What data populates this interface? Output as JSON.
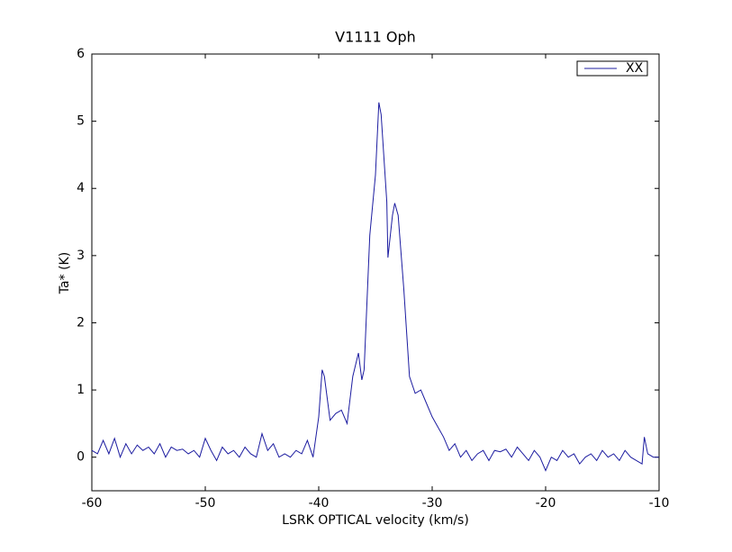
{
  "chart_data": {
    "type": "line",
    "title": "V1111 Oph",
    "xlabel": "LSRK OPTICAL velocity (km/s)",
    "ylabel": "Ta* (K)",
    "x": [
      -60,
      -59.5,
      -59,
      -58.5,
      -58,
      -57.5,
      -57,
      -56.5,
      -56,
      -55.5,
      -55,
      -54.5,
      -54,
      -53.5,
      -53,
      -52.5,
      -52,
      -51.5,
      -51,
      -50.5,
      -50,
      -49.5,
      -49,
      -48.5,
      -48,
      -47.5,
      -47,
      -46.5,
      -46,
      -45.5,
      -45,
      -44.5,
      -44,
      -43.5,
      -43,
      -42.5,
      -42,
      -41.5,
      -41,
      -40.5,
      -40,
      -39.7,
      -39.5,
      -39,
      -38.5,
      -38,
      -37.5,
      -37,
      -36.5,
      -36.2,
      -36,
      -35.5,
      -35,
      -34.7,
      -34.5,
      -34,
      -33.9,
      -33.5,
      -33.3,
      -33,
      -32.5,
      -32,
      -31.5,
      -31,
      -30.5,
      -30,
      -29.5,
      -29,
      -28.5,
      -28,
      -27.5,
      -27,
      -26.5,
      -26,
      -25.5,
      -25,
      -24.5,
      -24,
      -23.5,
      -23,
      -22.5,
      -22,
      -21.5,
      -21,
      -20.5,
      -20,
      -19.5,
      -19,
      -18.5,
      -18,
      -17.5,
      -17,
      -16.5,
      -16,
      -15.5,
      -15,
      -14.5,
      -14,
      -13.5,
      -13,
      -12.5,
      -12,
      -11.5,
      -11.3,
      -11,
      -10.5,
      -10
    ],
    "series": [
      {
        "name": "XX",
        "color": "#1c1ca0",
        "values": [
          0.1,
          0.05,
          0.25,
          0.05,
          0.28,
          0.0,
          0.2,
          0.05,
          0.18,
          0.1,
          0.15,
          0.05,
          0.2,
          0.0,
          0.15,
          0.1,
          0.12,
          0.05,
          0.1,
          0.0,
          0.28,
          0.1,
          -0.05,
          0.15,
          0.05,
          0.1,
          0.0,
          0.15,
          0.05,
          0.0,
          0.35,
          0.1,
          0.2,
          0.0,
          0.05,
          0.0,
          0.1,
          0.05,
          0.25,
          0.0,
          0.6,
          1.3,
          1.2,
          0.55,
          0.65,
          0.7,
          0.5,
          1.2,
          1.55,
          1.15,
          1.3,
          3.3,
          4.2,
          5.28,
          5.1,
          3.8,
          2.97,
          3.6,
          3.78,
          3.6,
          2.5,
          1.2,
          0.95,
          1.0,
          0.8,
          0.6,
          0.45,
          0.3,
          0.1,
          0.2,
          0.0,
          0.1,
          -0.05,
          0.05,
          0.1,
          -0.05,
          0.1,
          0.08,
          0.12,
          0.0,
          0.15,
          0.05,
          -0.05,
          0.1,
          0.0,
          -0.2,
          0.0,
          -0.05,
          0.1,
          0.0,
          0.05,
          -0.1,
          0.0,
          0.05,
          -0.05,
          0.1,
          0.0,
          0.05,
          -0.05,
          0.1,
          0.0,
          -0.05,
          -0.1,
          0.3,
          0.05,
          0.0,
          0.0
        ]
      }
    ],
    "xlim": [
      -60,
      -10
    ],
    "xticks": [
      -60,
      -50,
      -40,
      -30,
      -20,
      -10
    ],
    "ylim": [
      -0.5,
      6
    ],
    "yticks": [
      0,
      1,
      2,
      3,
      4,
      5,
      6
    ],
    "legend": "upper right"
  }
}
